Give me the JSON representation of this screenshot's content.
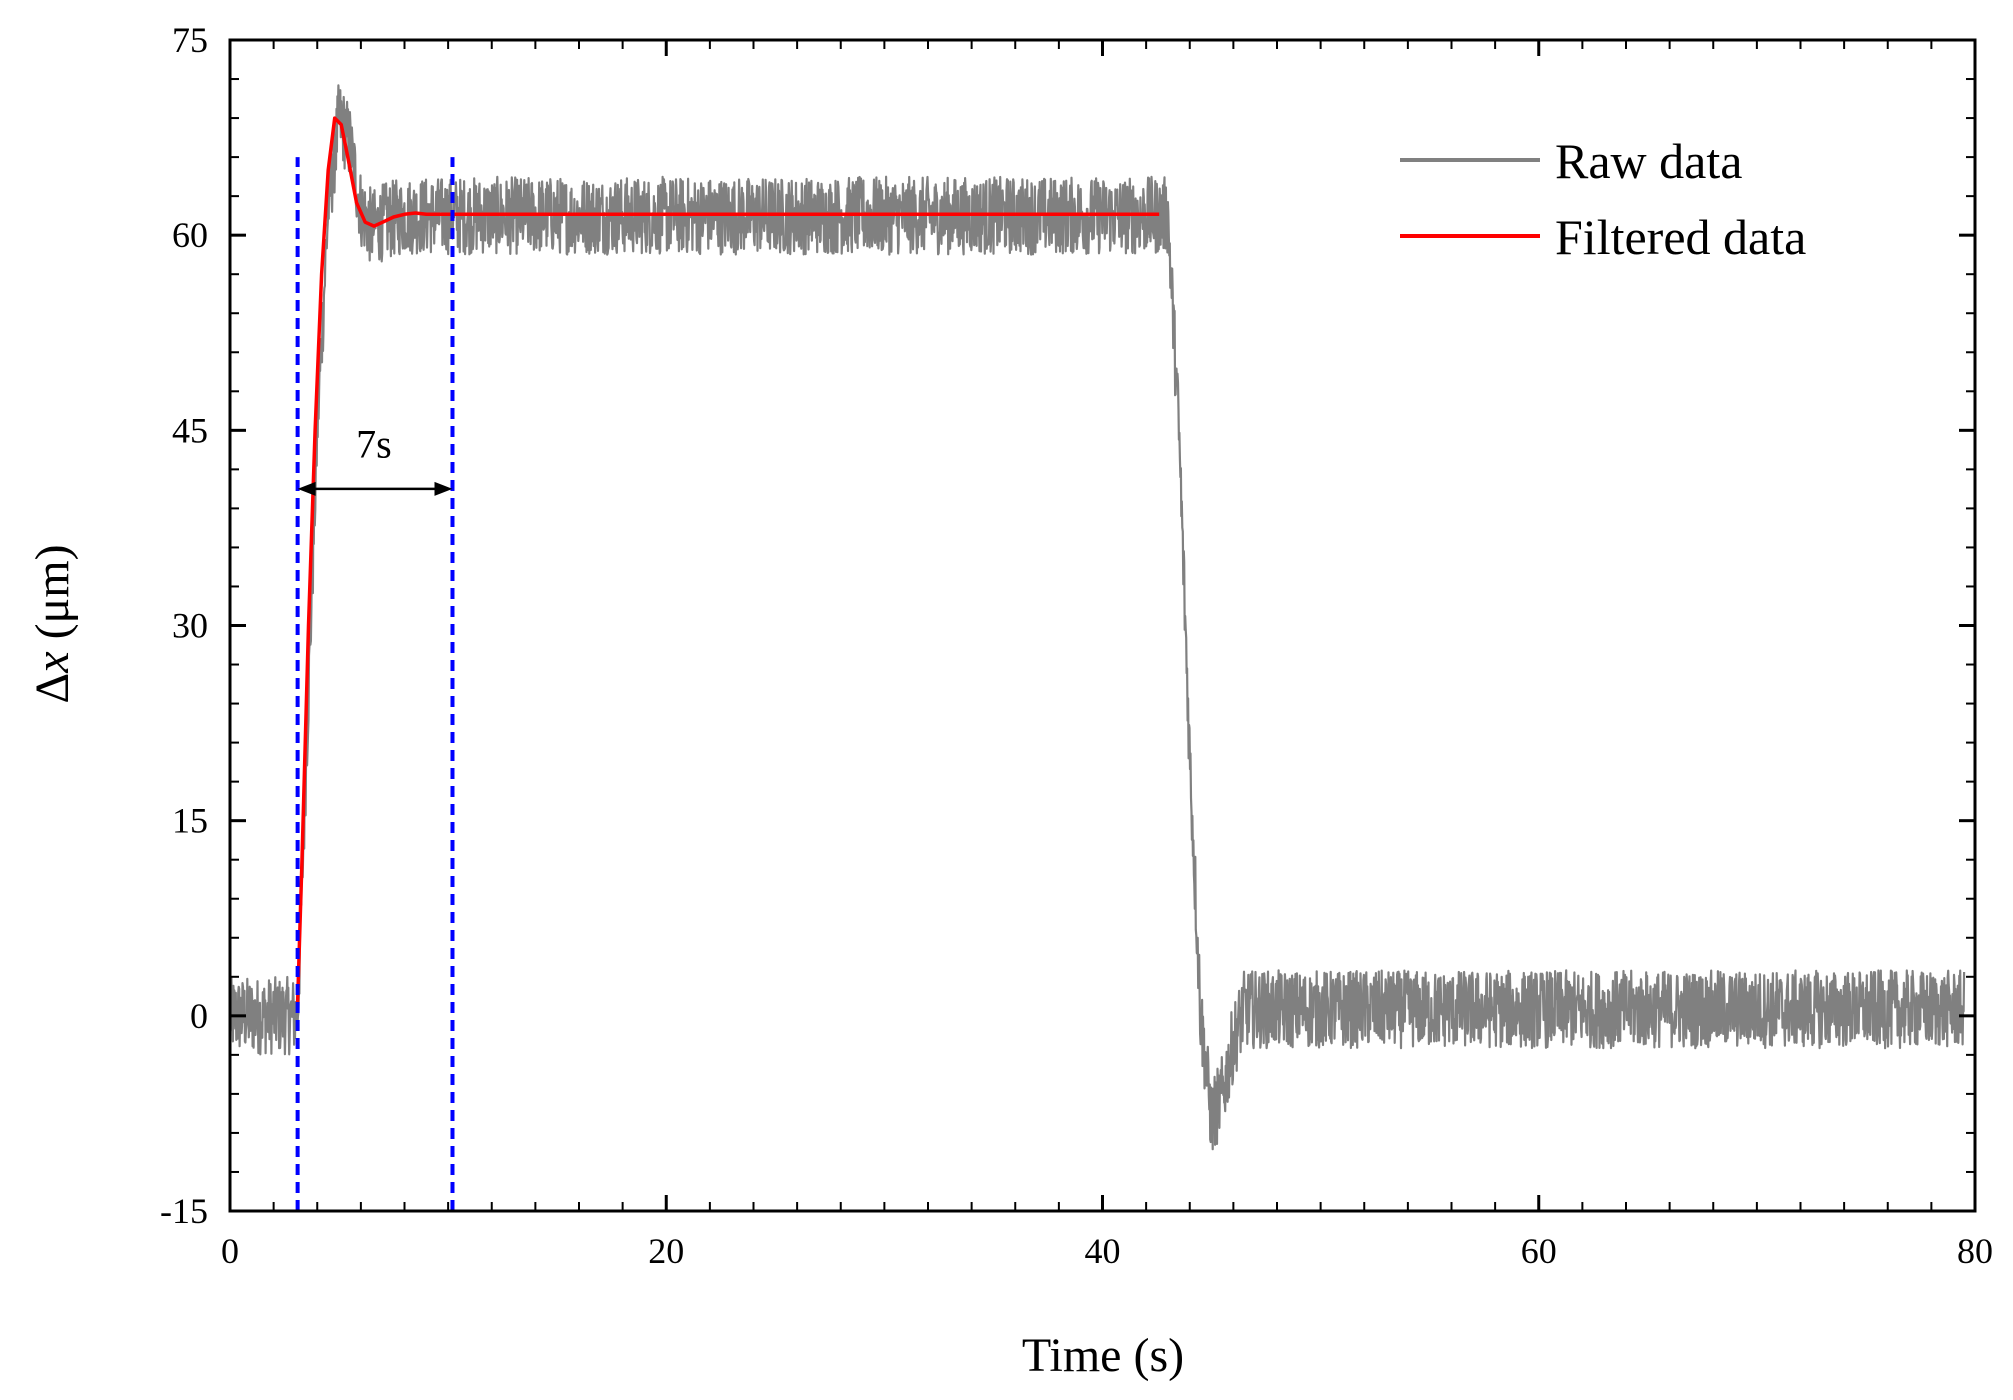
{
  "chart_data": {
    "type": "line",
    "title": "",
    "xlabel": "Time (s)",
    "ylabel_prefix": "Δ",
    "ylabel_var": "x",
    "ylabel_unit": " (μm)",
    "xlim": [
      0,
      80
    ],
    "ylim": [
      -15,
      75
    ],
    "xticks": [
      0,
      20,
      40,
      60,
      80
    ],
    "xtick_labels": [
      "0",
      "20",
      "40",
      "60",
      "80"
    ],
    "yticks": [
      -15,
      0,
      15,
      30,
      45,
      60,
      75
    ],
    "ytick_labels": [
      "-15",
      "0",
      "15",
      "30",
      "45",
      "60",
      "75"
    ],
    "x_minor_step": 2,
    "y_minor_step": 3,
    "grid": false,
    "legend_position": "top-right",
    "series": [
      {
        "name": "Raw data",
        "color": "#808080",
        "noise_amplitude": 3,
        "x": [
          0,
          3.1,
          3.5,
          4.0,
          4.5,
          5.0,
          5.5,
          6.0,
          6.5,
          7.0,
          8.0,
          10.0,
          43.0,
          43.5,
          44.0,
          44.5,
          45.0,
          45.5,
          46.0,
          46.5,
          47.5,
          79.5
        ],
        "y": [
          0,
          0,
          20,
          45,
          62,
          69,
          67,
          62,
          60.5,
          61,
          61.5,
          61.5,
          61.5,
          45,
          20,
          0,
          -8,
          -6,
          -2,
          0.5,
          0.5,
          0.5
        ]
      },
      {
        "name": "Filtered data",
        "color": "#ff0000",
        "x": [
          3.1,
          3.3,
          3.6,
          3.9,
          4.2,
          4.5,
          4.8,
          5.1,
          5.4,
          5.8,
          6.2,
          6.6,
          7.0,
          7.5,
          8.0,
          8.5,
          9.0,
          10.0,
          42.6
        ],
        "y": [
          1,
          12,
          30,
          45,
          57,
          65,
          69,
          68.5,
          66,
          62.5,
          61,
          60.7,
          61,
          61.4,
          61.6,
          61.7,
          61.6,
          61.6,
          61.6
        ]
      }
    ],
    "reference_lines": {
      "color": "#0000ff",
      "style": "dashed",
      "x": [
        3.1,
        10.2
      ],
      "y_range": [
        -15,
        66
      ]
    },
    "annotations": [
      {
        "text": "7s",
        "x_start": 3.1,
        "x_end": 10.2,
        "arrow_y": 40.5,
        "text_x": 6.6,
        "text_y": 44
      }
    ]
  }
}
